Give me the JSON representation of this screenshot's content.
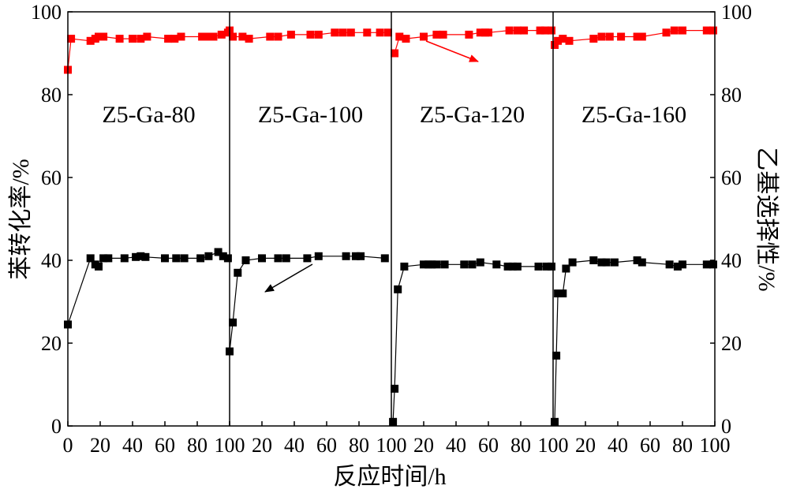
{
  "chart_data": {
    "type": "scatter",
    "xlabel": "反应时间/h",
    "ylabel_left": "苯转化率/%",
    "ylabel_right": "乙基选择性/%",
    "ylim": [
      0,
      100
    ],
    "y_ticks": [
      "0",
      "20",
      "40",
      "60",
      "80",
      "100"
    ],
    "x_ticks": [
      "0",
      "20",
      "40",
      "60",
      "80",
      "100"
    ],
    "panel_xlim": [
      0,
      100
    ],
    "colors": {
      "conversion": "#000000",
      "selectivity": "#ff0000"
    },
    "panels": [
      {
        "label": "Z5-Ga-80",
        "conversion": [
          [
            0,
            24.5
          ],
          [
            14,
            40.5
          ],
          [
            17,
            39
          ],
          [
            19,
            38.5
          ],
          [
            22,
            40.5
          ],
          [
            25,
            40.5
          ],
          [
            35,
            40.5
          ],
          [
            42,
            40.8
          ],
          [
            45,
            41
          ],
          [
            48,
            40.8
          ],
          [
            60,
            40.5
          ],
          [
            67,
            40.5
          ],
          [
            72,
            40.5
          ],
          [
            82,
            40.5
          ],
          [
            87,
            41
          ],
          [
            93,
            42
          ],
          [
            96,
            41
          ],
          [
            99,
            40.5
          ]
        ],
        "selectivity": [
          [
            0,
            86
          ],
          [
            2,
            93.5
          ],
          [
            14,
            93
          ],
          [
            17,
            93.5
          ],
          [
            19,
            94
          ],
          [
            22,
            94
          ],
          [
            32,
            93.5
          ],
          [
            40,
            93.5
          ],
          [
            45,
            93.5
          ],
          [
            49,
            94
          ],
          [
            62,
            93.5
          ],
          [
            66,
            93.5
          ],
          [
            70,
            94
          ],
          [
            83,
            94
          ],
          [
            86,
            94
          ],
          [
            90,
            94
          ],
          [
            95,
            94.5
          ],
          [
            99,
            95
          ]
        ]
      },
      {
        "label": "Z5-Ga-100",
        "conversion": [
          [
            0,
            18
          ],
          [
            2,
            25
          ],
          [
            5,
            37
          ],
          [
            10,
            40
          ],
          [
            20,
            40.5
          ],
          [
            30,
            40.5
          ],
          [
            35,
            40.5
          ],
          [
            48,
            40.5
          ],
          [
            55,
            41
          ],
          [
            72,
            41
          ],
          [
            78,
            41
          ],
          [
            81,
            41
          ],
          [
            96,
            40.5
          ]
        ],
        "selectivity": [
          [
            0,
            95.5
          ],
          [
            2,
            94
          ],
          [
            8,
            94
          ],
          [
            12,
            93.5
          ],
          [
            25,
            94
          ],
          [
            30,
            94
          ],
          [
            38,
            94.5
          ],
          [
            50,
            94.5
          ],
          [
            55,
            94.5
          ],
          [
            65,
            95
          ],
          [
            70,
            95
          ],
          [
            75,
            95
          ],
          [
            85,
            95
          ],
          [
            93,
            95
          ],
          [
            98,
            95
          ]
        ]
      },
      {
        "label": "Z5-Ga-120",
        "conversion": [
          [
            1,
            1
          ],
          [
            2,
            9
          ],
          [
            4,
            33
          ],
          [
            8,
            38.5
          ],
          [
            20,
            39
          ],
          [
            23,
            39
          ],
          [
            25,
            39
          ],
          [
            28,
            39
          ],
          [
            33,
            39
          ],
          [
            45,
            39
          ],
          [
            50,
            39
          ],
          [
            55,
            39.5
          ],
          [
            65,
            39
          ],
          [
            72,
            38.5
          ],
          [
            75,
            38.5
          ],
          [
            78,
            38.5
          ],
          [
            91,
            38.5
          ],
          [
            96,
            38.5
          ],
          [
            99,
            38.5
          ]
        ],
        "selectivity": [
          [
            2,
            90
          ],
          [
            5,
            94
          ],
          [
            9,
            93.5
          ],
          [
            20,
            94
          ],
          [
            28,
            94.5
          ],
          [
            32,
            94.5
          ],
          [
            48,
            94.5
          ],
          [
            55,
            95
          ],
          [
            58,
            95
          ],
          [
            60,
            95
          ],
          [
            73,
            95.5
          ],
          [
            78,
            95.5
          ],
          [
            82,
            95.5
          ],
          [
            92,
            95.5
          ],
          [
            95,
            95.5
          ],
          [
            99,
            95.5
          ]
        ]
      },
      {
        "label": "Z5-Ga-160",
        "conversion": [
          [
            1,
            1
          ],
          [
            2,
            17
          ],
          [
            3,
            32
          ],
          [
            6,
            32
          ],
          [
            8,
            38
          ],
          [
            12,
            39.5
          ],
          [
            25,
            40
          ],
          [
            30,
            39.5
          ],
          [
            33,
            39.5
          ],
          [
            38,
            39.5
          ],
          [
            52,
            40
          ],
          [
            55,
            39.5
          ],
          [
            72,
            39
          ],
          [
            77,
            38.5
          ],
          [
            80,
            39
          ],
          [
            95,
            39
          ],
          [
            99,
            39
          ]
        ],
        "selectivity": [
          [
            1,
            92
          ],
          [
            3,
            93
          ],
          [
            6,
            93.5
          ],
          [
            10,
            93
          ],
          [
            25,
            93.5
          ],
          [
            30,
            94
          ],
          [
            35,
            94
          ],
          [
            42,
            94
          ],
          [
            52,
            94
          ],
          [
            55,
            94
          ],
          [
            70,
            95
          ],
          [
            75,
            95.5
          ],
          [
            80,
            95.5
          ],
          [
            95,
            95.5
          ],
          [
            99,
            95.5
          ]
        ]
      }
    ]
  }
}
